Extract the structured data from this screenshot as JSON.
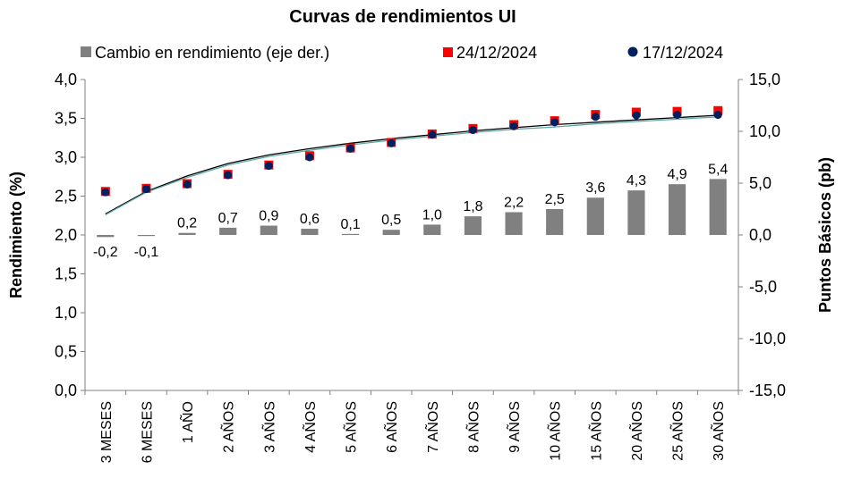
{
  "chart_data": {
    "type": "bar+scatter",
    "title": "Curvas de rendimientos UI",
    "categories": [
      "3 MESES",
      "6 MESES",
      "1 AÑO",
      "2 AÑOS",
      "3 AÑOS",
      "4 AÑOS",
      "5 AÑOS",
      "6 AÑOS",
      "7 AÑOS",
      "8 AÑOS",
      "9 AÑOS",
      "10 AÑOS",
      "15 AÑOS",
      "20 AÑOS",
      "25 AÑOS",
      "30 AÑOS"
    ],
    "ylabel_left": "Rendimiento (%)",
    "ylabel_right": "Puntos Básicos (pb)",
    "ylim_left": [
      0,
      4
    ],
    "ylim_right": [
      -15,
      15
    ],
    "yticks_left": [
      "0,0",
      "0,5",
      "1,0",
      "1,5",
      "2,0",
      "2,5",
      "3,0",
      "3,5",
      "4,0"
    ],
    "yticks_right": [
      "-15,0",
      "-10,0",
      "-5,0",
      "0,0",
      "5,0",
      "10,0",
      "15,0"
    ],
    "legend_position": "top",
    "series": [
      {
        "name": "Cambio en rendimiento (eje der.)",
        "kind": "bar",
        "axis": "right",
        "color": "#808080",
        "values": [
          -0.2,
          -0.1,
          0.2,
          0.7,
          0.9,
          0.6,
          0.1,
          0.5,
          1.0,
          1.8,
          2.2,
          2.5,
          3.6,
          4.3,
          4.9,
          5.4
        ],
        "labels": [
          "-0,2",
          "-0,1",
          "0,2",
          "0,7",
          "0,9",
          "0,6",
          "0,1",
          "0,5",
          "1,0",
          "1,8",
          "2,2",
          "2,5",
          "3,6",
          "4,3",
          "4,9",
          "5,4"
        ]
      },
      {
        "name": "24/12/2024",
        "kind": "scatter",
        "marker": "square",
        "axis": "left",
        "color": "#ff0000",
        "values": [
          2.56,
          2.6,
          2.66,
          2.78,
          2.9,
          3.02,
          3.12,
          3.19,
          3.3,
          3.37,
          3.42,
          3.47,
          3.55,
          3.58,
          3.59,
          3.6
        ]
      },
      {
        "name": "17/12/2024",
        "kind": "scatter",
        "marker": "circle",
        "axis": "left",
        "color": "#002060",
        "values": [
          2.55,
          2.59,
          2.65,
          2.77,
          2.89,
          3.0,
          3.11,
          3.18,
          3.29,
          3.35,
          3.4,
          3.45,
          3.52,
          3.54,
          3.545,
          3.545
        ]
      }
    ],
    "trendlines": [
      {
        "color": "#000000",
        "values": [
          2.27,
          2.56,
          2.76,
          2.92,
          3.03,
          3.11,
          3.18,
          3.24,
          3.29,
          3.34,
          3.38,
          3.42,
          3.45,
          3.48,
          3.51,
          3.54
        ]
      },
      {
        "color": "#5fa8a8",
        "values": [
          2.26,
          2.55,
          2.74,
          2.9,
          3.01,
          3.09,
          3.16,
          3.22,
          3.27,
          3.32,
          3.36,
          3.39,
          3.43,
          3.46,
          3.49,
          3.52
        ]
      }
    ]
  }
}
